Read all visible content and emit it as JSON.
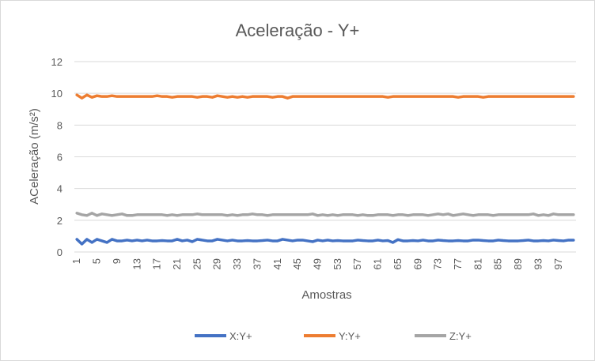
{
  "chart_data": {
    "type": "line",
    "title": "Aceleração - Y+",
    "xlabel": "Amostras",
    "ylabel": "ACeleração (m/s²)",
    "ylim": [
      0,
      12
    ],
    "yticks": [
      0,
      2,
      4,
      6,
      8,
      10,
      12
    ],
    "x_tick_labels": [
      "1",
      "5",
      "9",
      "13",
      "17",
      "21",
      "25",
      "29",
      "33",
      "37",
      "41",
      "45",
      "49",
      "53",
      "57",
      "61",
      "65",
      "69",
      "73",
      "77",
      "81",
      "85",
      "89",
      "93",
      "97"
    ],
    "x_count": 100,
    "grid": "horizontal",
    "legend_position": "bottom",
    "series": [
      {
        "name": "X:Y+",
        "color": "#4472c4",
        "values": [
          0.8,
          0.5,
          0.8,
          0.6,
          0.8,
          0.7,
          0.6,
          0.8,
          0.7,
          0.7,
          0.75,
          0.7,
          0.75,
          0.7,
          0.75,
          0.7,
          0.7,
          0.72,
          0.7,
          0.7,
          0.8,
          0.7,
          0.75,
          0.65,
          0.8,
          0.75,
          0.7,
          0.7,
          0.8,
          0.75,
          0.7,
          0.75,
          0.7,
          0.7,
          0.72,
          0.7,
          0.7,
          0.72,
          0.75,
          0.7,
          0.7,
          0.8,
          0.75,
          0.7,
          0.75,
          0.75,
          0.7,
          0.65,
          0.75,
          0.7,
          0.75,
          0.7,
          0.72,
          0.7,
          0.7,
          0.7,
          0.75,
          0.72,
          0.7,
          0.7,
          0.75,
          0.7,
          0.72,
          0.6,
          0.78,
          0.7,
          0.7,
          0.72,
          0.7,
          0.75,
          0.7,
          0.7,
          0.75,
          0.72,
          0.7,
          0.7,
          0.72,
          0.7,
          0.7,
          0.75,
          0.75,
          0.72,
          0.7,
          0.7,
          0.75,
          0.72,
          0.7,
          0.7,
          0.7,
          0.72,
          0.75,
          0.7,
          0.7,
          0.72,
          0.7,
          0.75,
          0.72,
          0.7,
          0.75,
          0.75
        ]
      },
      {
        "name": "Y:Y+",
        "color": "#ed7d31",
        "values": [
          9.9,
          9.7,
          9.9,
          9.75,
          9.85,
          9.8,
          9.8,
          9.85,
          9.8,
          9.8,
          9.8,
          9.8,
          9.8,
          9.8,
          9.8,
          9.8,
          9.85,
          9.8,
          9.8,
          9.75,
          9.8,
          9.8,
          9.8,
          9.8,
          9.75,
          9.8,
          9.8,
          9.75,
          9.85,
          9.8,
          9.75,
          9.8,
          9.75,
          9.8,
          9.75,
          9.8,
          9.8,
          9.8,
          9.8,
          9.75,
          9.8,
          9.8,
          9.7,
          9.8,
          9.8,
          9.8,
          9.8,
          9.8,
          9.8,
          9.8,
          9.8,
          9.8,
          9.8,
          9.8,
          9.8,
          9.8,
          9.8,
          9.8,
          9.8,
          9.8,
          9.8,
          9.8,
          9.75,
          9.8,
          9.8,
          9.8,
          9.8,
          9.8,
          9.8,
          9.8,
          9.8,
          9.8,
          9.8,
          9.8,
          9.8,
          9.8,
          9.75,
          9.8,
          9.8,
          9.8,
          9.8,
          9.75,
          9.8,
          9.8,
          9.8,
          9.8,
          9.8,
          9.8,
          9.8,
          9.8,
          9.8,
          9.8,
          9.8,
          9.8,
          9.8,
          9.8,
          9.8,
          9.8,
          9.8,
          9.8
        ]
      },
      {
        "name": "Z:Y+",
        "color": "#a5a5a5",
        "values": [
          2.45,
          2.35,
          2.3,
          2.45,
          2.3,
          2.4,
          2.35,
          2.3,
          2.35,
          2.4,
          2.3,
          2.3,
          2.35,
          2.35,
          2.35,
          2.35,
          2.35,
          2.35,
          2.3,
          2.35,
          2.3,
          2.35,
          2.35,
          2.35,
          2.4,
          2.35,
          2.35,
          2.35,
          2.35,
          2.35,
          2.3,
          2.35,
          2.3,
          2.35,
          2.35,
          2.4,
          2.35,
          2.35,
          2.3,
          2.35,
          2.35,
          2.35,
          2.35,
          2.35,
          2.35,
          2.35,
          2.35,
          2.4,
          2.3,
          2.35,
          2.3,
          2.35,
          2.3,
          2.35,
          2.35,
          2.35,
          2.3,
          2.35,
          2.3,
          2.3,
          2.35,
          2.35,
          2.35,
          2.3,
          2.35,
          2.35,
          2.3,
          2.35,
          2.35,
          2.35,
          2.3,
          2.35,
          2.4,
          2.35,
          2.4,
          2.3,
          2.35,
          2.4,
          2.35,
          2.3,
          2.35,
          2.35,
          2.35,
          2.3,
          2.35,
          2.35,
          2.35,
          2.35,
          2.35,
          2.35,
          2.35,
          2.4,
          2.3,
          2.35,
          2.3,
          2.4,
          2.35,
          2.35,
          2.35,
          2.35
        ]
      }
    ]
  }
}
